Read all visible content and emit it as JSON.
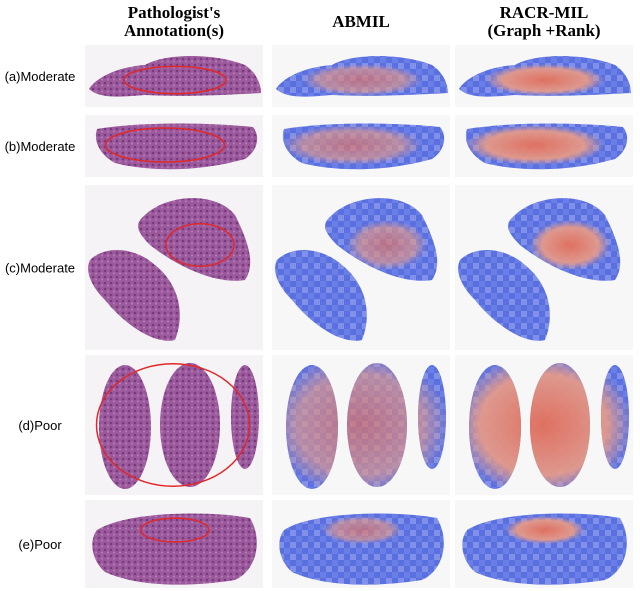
{
  "columns": [
    {
      "lines": [
        "Pathologist's",
        "Annotation(s)"
      ]
    },
    {
      "lines": [
        "ABMIL"
      ]
    },
    {
      "lines": [
        "RACR-MIL",
        "(Graph +Rank)"
      ]
    }
  ],
  "rows": [
    {
      "label": "(a)Moderate"
    },
    {
      "label": "(b)Moderate"
    },
    {
      "label": "(c)Moderate"
    },
    {
      "label": "(d)Poor"
    },
    {
      "label": "(e)Poor"
    }
  ]
}
